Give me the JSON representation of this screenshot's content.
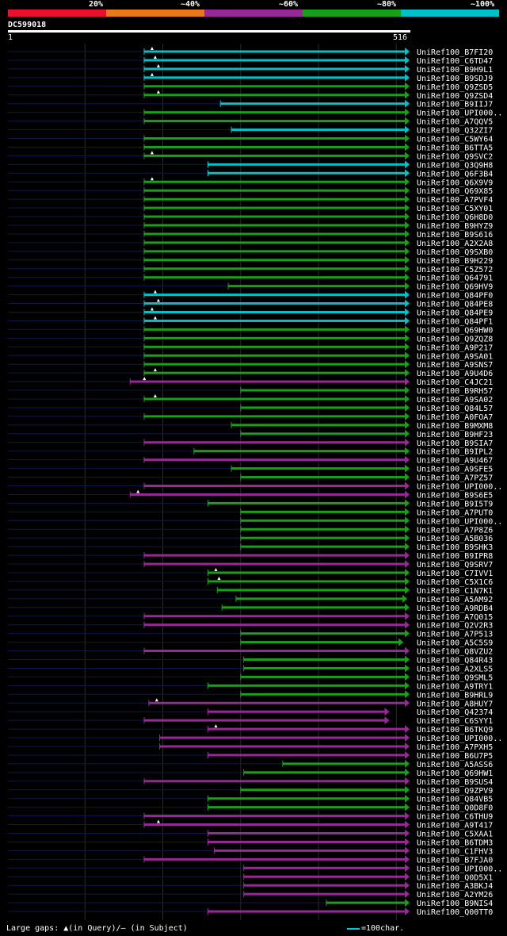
{
  "legend": {
    "labels": [
      "20%",
      "~40%",
      "~60%",
      "~80%",
      "~100%"
    ],
    "colors": [
      "#e8102c",
      "#e87818",
      "#982898",
      "#18a018",
      "#00c0c8"
    ]
  },
  "query": {
    "id": "DC599018",
    "start": "1",
    "end": "516"
  },
  "footer": {
    "gaps_text": "Large gaps: ▲(in Query)/– (in Subject)",
    "scale_text": "=100char."
  },
  "chart_data": {
    "type": "alignment",
    "query_length": 516,
    "hits": [
      {
        "name": "UniRef100_B7FI20",
        "start": 176,
        "end": 516,
        "identity": "~100%",
        "gap": "query"
      },
      {
        "name": "UniRef100_C6TD47",
        "start": 176,
        "end": 516,
        "identity": "~100%",
        "gap": "query"
      },
      {
        "name": "UniRef100_B9H9L1",
        "start": 176,
        "end": 516,
        "identity": "~100%",
        "gap": "query"
      },
      {
        "name": "UniRef100_B9SDJ9",
        "start": 176,
        "end": 516,
        "identity": "~100%",
        "gap": "query"
      },
      {
        "name": "UniRef100_Q9ZSD5",
        "start": 176,
        "end": 516,
        "identity": "~80%"
      },
      {
        "name": "UniRef100_Q9ZSD4",
        "start": 176,
        "end": 516,
        "identity": "~80%",
        "gap": "query"
      },
      {
        "name": "UniRef100_B9IIJ7",
        "start": 274,
        "end": 516,
        "identity": "~100%"
      },
      {
        "name": "UniRef100_UPI000..",
        "start": 176,
        "end": 516,
        "identity": "~80%"
      },
      {
        "name": "UniRef100_A7QQV5",
        "start": 176,
        "end": 516,
        "identity": "~80%"
      },
      {
        "name": "UniRef100_Q32ZI7",
        "start": 288,
        "end": 516,
        "identity": "~100%"
      },
      {
        "name": "UniRef100_C5WY64",
        "start": 176,
        "end": 516,
        "identity": "~80%"
      },
      {
        "name": "UniRef100_B6TTA5",
        "start": 176,
        "end": 516,
        "identity": "~80%"
      },
      {
        "name": "UniRef100_Q9SVC2",
        "start": 176,
        "end": 516,
        "identity": "~80%",
        "gap": "query"
      },
      {
        "name": "UniRef100_Q3Q9H8",
        "start": 258,
        "end": 516,
        "identity": "~100%"
      },
      {
        "name": "UniRef100_Q6F3B4",
        "start": 258,
        "end": 516,
        "identity": "~100%"
      },
      {
        "name": "UniRef100_Q6X9V9",
        "start": 176,
        "end": 516,
        "identity": "~80%",
        "gap": "query"
      },
      {
        "name": "UniRef100_Q69X85",
        "start": 176,
        "end": 516,
        "identity": "~80%"
      },
      {
        "name": "UniRef100_A7PVF4",
        "start": 176,
        "end": 516,
        "identity": "~80%"
      },
      {
        "name": "UniRef100_C5XY01",
        "start": 176,
        "end": 516,
        "identity": "~80%"
      },
      {
        "name": "UniRef100_Q6H8D0",
        "start": 176,
        "end": 516,
        "identity": "~80%"
      },
      {
        "name": "UniRef100_B9HYZ9",
        "start": 176,
        "end": 516,
        "identity": "~80%"
      },
      {
        "name": "UniRef100_B9S616",
        "start": 176,
        "end": 516,
        "identity": "~80%"
      },
      {
        "name": "UniRef100_A2X2A8",
        "start": 176,
        "end": 516,
        "identity": "~80%"
      },
      {
        "name": "UniRef100_Q9SXB0",
        "start": 176,
        "end": 516,
        "identity": "~80%"
      },
      {
        "name": "UniRef100_B9H229",
        "start": 176,
        "end": 516,
        "identity": "~80%"
      },
      {
        "name": "UniRef100_C5Z572",
        "start": 176,
        "end": 516,
        "identity": "~80%"
      },
      {
        "name": "UniRef100_Q64791",
        "start": 176,
        "end": 516,
        "identity": "~80%"
      },
      {
        "name": "UniRef100_Q69HV9",
        "start": 284,
        "end": 516,
        "identity": "~80%"
      },
      {
        "name": "UniRef100_Q84PF0",
        "start": 176,
        "end": 516,
        "identity": "~100%",
        "gap": "query"
      },
      {
        "name": "UniRef100_Q84PE8",
        "start": 176,
        "end": 516,
        "identity": "~100%",
        "gap": "query"
      },
      {
        "name": "UniRef100_Q84PE9",
        "start": 176,
        "end": 516,
        "identity": "~100%",
        "gap": "query"
      },
      {
        "name": "UniRef100_Q84PF1",
        "start": 176,
        "end": 516,
        "identity": "~100%",
        "gap": "query"
      },
      {
        "name": "UniRef100_Q69HW0",
        "start": 176,
        "end": 516,
        "identity": "~80%"
      },
      {
        "name": "UniRef100_Q9ZQZ8",
        "start": 176,
        "end": 516,
        "identity": "~80%"
      },
      {
        "name": "UniRef100_A9P217",
        "start": 176,
        "end": 516,
        "identity": "~80%"
      },
      {
        "name": "UniRef100_A9SA01",
        "start": 176,
        "end": 516,
        "identity": "~80%"
      },
      {
        "name": "UniRef100_A9SNS7",
        "start": 176,
        "end": 516,
        "identity": "~80%"
      },
      {
        "name": "UniRef100_A9U4D6",
        "start": 176,
        "end": 516,
        "identity": "~80%",
        "gap": "query"
      },
      {
        "name": "UniRef100_C4JC21",
        "start": 158,
        "end": 516,
        "identity": "~60%",
        "gap": "query"
      },
      {
        "name": "UniRef100_B9RH57",
        "start": 300,
        "end": 516,
        "identity": "~80%"
      },
      {
        "name": "UniRef100_A9SA02",
        "start": 176,
        "end": 516,
        "identity": "~80%",
        "gap": "query"
      },
      {
        "name": "UniRef100_Q84L57",
        "start": 300,
        "end": 516,
        "identity": "~80%"
      },
      {
        "name": "UniRef100_A0FOA7",
        "start": 176,
        "end": 516,
        "identity": "~80%"
      },
      {
        "name": "UniRef100_B9MXM8",
        "start": 288,
        "end": 516,
        "identity": "~80%"
      },
      {
        "name": "UniRef100_B9HF23",
        "start": 300,
        "end": 516,
        "identity": "~80%"
      },
      {
        "name": "UniRef100_B9SIA7",
        "start": 176,
        "end": 516,
        "identity": "~60%"
      },
      {
        "name": "UniRef100_B9IPL2",
        "start": 240,
        "end": 516,
        "identity": "~80%"
      },
      {
        "name": "UniRef100_A9U467",
        "start": 176,
        "end": 516,
        "identity": "~60%"
      },
      {
        "name": "UniRef100_A9SFE5",
        "start": 288,
        "end": 516,
        "identity": "~80%"
      },
      {
        "name": "UniRef100_A7PZ57",
        "start": 300,
        "end": 516,
        "identity": "~80%"
      },
      {
        "name": "UniRef100_UPI000..",
        "start": 176,
        "end": 516,
        "identity": "~60%"
      },
      {
        "name": "UniRef100_B9S6E5",
        "start": 158,
        "end": 516,
        "identity": "~60%",
        "gap": "query"
      },
      {
        "name": "UniRef100_B9I5T9",
        "start": 258,
        "end": 516,
        "identity": "~80%"
      },
      {
        "name": "UniRef100_A7PUT0",
        "start": 300,
        "end": 516,
        "identity": "~80%"
      },
      {
        "name": "UniRef100_UPI000..",
        "start": 300,
        "end": 516,
        "identity": "~80%"
      },
      {
        "name": "UniRef100_A7P8Z6",
        "start": 300,
        "end": 516,
        "identity": "~80%"
      },
      {
        "name": "UniRef100_A5B036",
        "start": 300,
        "end": 516,
        "identity": "~80%"
      },
      {
        "name": "UniRef100_B9SHK3",
        "start": 300,
        "end": 516,
        "identity": "~80%"
      },
      {
        "name": "UniRef100_B9IPR8",
        "start": 176,
        "end": 516,
        "identity": "~60%"
      },
      {
        "name": "UniRef100_Q9SRV7",
        "start": 176,
        "end": 516,
        "identity": "~60%"
      },
      {
        "name": "UniRef100_C7IVV1",
        "start": 258,
        "end": 516,
        "identity": "~80%",
        "gap": "query"
      },
      {
        "name": "UniRef100_C5X1C6",
        "start": 258,
        "end": 516,
        "identity": "~80%",
        "gap": "query"
      },
      {
        "name": "UniRef100_C1N7K1",
        "start": 270,
        "end": 516,
        "identity": "~80%"
      },
      {
        "name": "UniRef100_A5AM92",
        "start": 294,
        "end": 513,
        "identity": "~80%"
      },
      {
        "name": "UniRef100_A9RDB4",
        "start": 276,
        "end": 516,
        "identity": "~80%"
      },
      {
        "name": "UniRef100_A7Q015",
        "start": 176,
        "end": 516,
        "identity": "~60%"
      },
      {
        "name": "UniRef100_Q2V2R3",
        "start": 176,
        "end": 516,
        "identity": "~60%"
      },
      {
        "name": "UniRef100_A7P513",
        "start": 300,
        "end": 516,
        "identity": "~80%"
      },
      {
        "name": "UniRef100_A5C5S9",
        "start": 300,
        "end": 508,
        "identity": "~80%"
      },
      {
        "name": "UniRef100_Q8VZU2",
        "start": 176,
        "end": 516,
        "identity": "~60%"
      },
      {
        "name": "UniRef100_Q84R43",
        "start": 304,
        "end": 516,
        "identity": "~80%"
      },
      {
        "name": "UniRef100_A2XLS5",
        "start": 304,
        "end": 516,
        "identity": "~80%"
      },
      {
        "name": "UniRef100_Q9SML5",
        "start": 300,
        "end": 516,
        "identity": "~80%"
      },
      {
        "name": "UniRef100_A9TRY1",
        "start": 258,
        "end": 516,
        "identity": "~80%"
      },
      {
        "name": "UniRef100_B9HRL9",
        "start": 300,
        "end": 516,
        "identity": "~80%"
      },
      {
        "name": "UniRef100_A8HUY7",
        "start": 182,
        "end": 516,
        "identity": "~60%",
        "gap": "query"
      },
      {
        "name": "UniRef100_Q42374",
        "start": 258,
        "end": 490,
        "identity": "~60%"
      },
      {
        "name": "UniRef100_C6SYY1",
        "start": 176,
        "end": 490,
        "identity": "~60%"
      },
      {
        "name": "UniRef100_B6TKQ9",
        "start": 258,
        "end": 516,
        "identity": "~60%",
        "gap": "query"
      },
      {
        "name": "UniRef100_UPI000..",
        "start": 196,
        "end": 516,
        "identity": "~60%"
      },
      {
        "name": "UniRef100_A7PXH5",
        "start": 196,
        "end": 516,
        "identity": "~60%"
      },
      {
        "name": "UniRef100_B6U7P5",
        "start": 258,
        "end": 516,
        "identity": "~60%"
      },
      {
        "name": "UniRef100_A5ASS6",
        "start": 354,
        "end": 516,
        "identity": "~80%"
      },
      {
        "name": "UniRef100_Q69HW1",
        "start": 304,
        "end": 516,
        "identity": "~80%"
      },
      {
        "name": "UniRef100_B9SUS4",
        "start": 176,
        "end": 516,
        "identity": "~60%"
      },
      {
        "name": "UniRef100_Q9ZPV9",
        "start": 300,
        "end": 516,
        "identity": "~80%"
      },
      {
        "name": "UniRef100_Q84VB5",
        "start": 258,
        "end": 516,
        "identity": "~80%"
      },
      {
        "name": "UniRef100_Q0D8F0",
        "start": 258,
        "end": 516,
        "identity": "~80%"
      },
      {
        "name": "UniRef100_C6THU9",
        "start": 176,
        "end": 516,
        "identity": "~60%"
      },
      {
        "name": "UniRef100_A9T417",
        "start": 176,
        "end": 516,
        "identity": "~60%",
        "gap": "query"
      },
      {
        "name": "UniRef100_C5XAA1",
        "start": 258,
        "end": 516,
        "identity": "~60%"
      },
      {
        "name": "UniRef100_B6TDM3",
        "start": 258,
        "end": 516,
        "identity": "~60%"
      },
      {
        "name": "UniRef100_C1FHV3",
        "start": 266,
        "end": 516,
        "identity": "~60%"
      },
      {
        "name": "UniRef100_B7FJA0",
        "start": 176,
        "end": 516,
        "identity": "~60%"
      },
      {
        "name": "UniRef100_UPI000..",
        "start": 304,
        "end": 516,
        "identity": "~60%"
      },
      {
        "name": "UniRef100_Q0D5X1",
        "start": 304,
        "end": 516,
        "identity": "~60%"
      },
      {
        "name": "UniRef100_A3BKJ4",
        "start": 304,
        "end": 516,
        "identity": "~60%"
      },
      {
        "name": "UniRef100_A2YM26",
        "start": 304,
        "end": 516,
        "identity": "~60%"
      },
      {
        "name": "UniRef100_B9NIS4",
        "start": 410,
        "end": 516,
        "identity": "~80%"
      },
      {
        "name": "UniRef100_Q00TT0",
        "start": 258,
        "end": 516,
        "identity": "~60%"
      }
    ]
  }
}
